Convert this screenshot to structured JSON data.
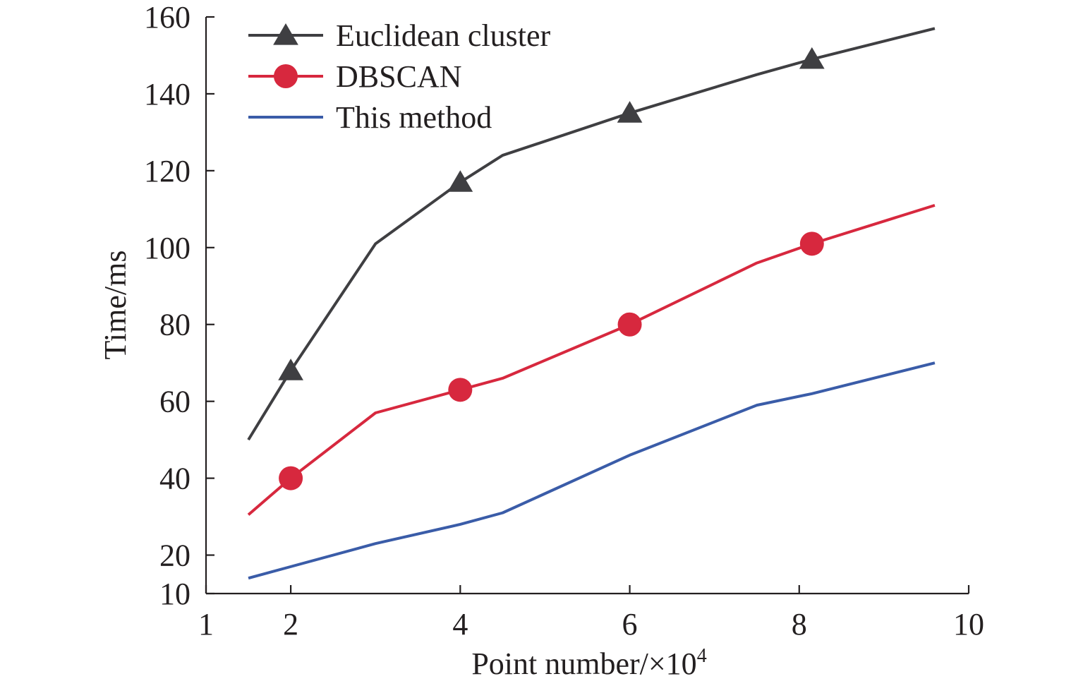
{
  "chart_data": {
    "type": "line",
    "title": "",
    "xlabel": "Point number/×10",
    "xlabel_sup": "4",
    "ylabel": "Time/ms",
    "xlim": [
      1,
      10
    ],
    "ylim": [
      10,
      160
    ],
    "x_ticks": [
      1,
      2,
      4,
      6,
      8,
      10
    ],
    "y_ticks": [
      10,
      20,
      40,
      60,
      80,
      100,
      120,
      140,
      160
    ],
    "legend_position": "top-left",
    "grid": false,
    "series": [
      {
        "name": "Euclidean cluster",
        "color": "#3f3f42",
        "marker": "triangle",
        "x": [
          1.5,
          2.0,
          3.0,
          4.0,
          4.5,
          6.0,
          7.5,
          8.15,
          9.6
        ],
        "y": [
          50,
          68,
          101,
          117,
          124,
          135,
          145,
          149,
          157
        ],
        "markers_at": [
          2.0,
          4.0,
          6.0,
          8.15
        ]
      },
      {
        "name": "DBSCAN",
        "color": "#d7283e",
        "marker": "circle",
        "x": [
          1.5,
          2.0,
          3.0,
          4.0,
          4.5,
          6.0,
          7.5,
          8.15,
          9.6
        ],
        "y": [
          30.5,
          40,
          57,
          63,
          66,
          80,
          96,
          101,
          111
        ],
        "markers_at": [
          2.0,
          4.0,
          6.0,
          8.15
        ]
      },
      {
        "name": "This method",
        "color": "#3a5ca8",
        "marker": "none",
        "x": [
          1.5,
          2.0,
          3.0,
          4.0,
          4.5,
          6.0,
          7.5,
          8.15,
          9.6
        ],
        "y": [
          14,
          17,
          23,
          28,
          31,
          46,
          59,
          62,
          70
        ],
        "markers_at": []
      }
    ]
  }
}
